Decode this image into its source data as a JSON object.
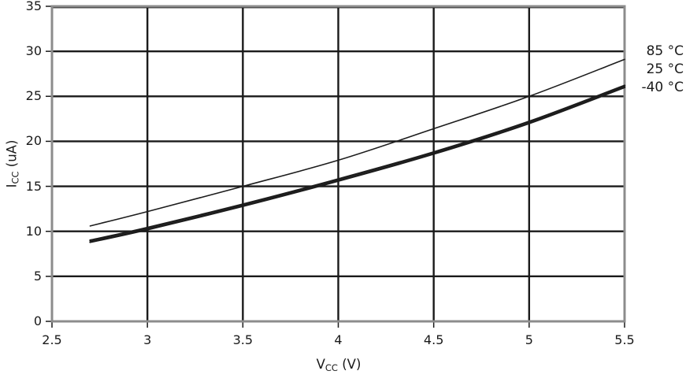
{
  "chart_data": {
    "type": "line",
    "title": "",
    "xlabel": {
      "pre": "V",
      "sub": "CC",
      "post": " (V)"
    },
    "ylabel": {
      "pre": "I",
      "sub": "CC",
      "post": " (uA)"
    },
    "xlim": [
      2.5,
      5.5
    ],
    "ylim": [
      0,
      35
    ],
    "x_ticks": [
      2.5,
      3,
      3.5,
      4,
      4.5,
      5,
      5.5
    ],
    "x_tick_labels": [
      "2.5",
      "3",
      "3.5",
      "4",
      "4.5",
      "5",
      "5.5"
    ],
    "y_ticks": [
      0,
      5,
      10,
      15,
      20,
      25,
      30,
      35
    ],
    "y_tick_labels": [
      "0",
      "5",
      "10",
      "15",
      "20",
      "25",
      "30",
      "35"
    ],
    "grid": true,
    "legend": {
      "position": "right-outside",
      "entries": [
        "85 °C",
        "25 °C",
        "-40 °C"
      ]
    },
    "x": [
      2.7,
      3.0,
      3.5,
      4.0,
      4.5,
      5.0,
      5.5
    ],
    "series": [
      {
        "name": "-40 °C",
        "stroke_width": 2.4,
        "values": [
          8.8,
          10.2,
          12.8,
          15.6,
          18.6,
          22.0,
          26.0
        ]
      },
      {
        "name": "25 °C",
        "stroke_width": 2.4,
        "values": [
          9.0,
          10.4,
          13.0,
          15.8,
          18.8,
          22.2,
          26.2
        ]
      },
      {
        "name": "85 °C",
        "stroke_width": 1.6,
        "values": [
          10.6,
          12.2,
          15.0,
          17.9,
          21.4,
          25.0,
          29.1
        ]
      }
    ],
    "colors": {
      "line": "#1c1c1c",
      "frame": "#8c8c8c",
      "grid": "#1a1a1a",
      "text": "#1a1a1a",
      "background": "#ffffff"
    }
  }
}
